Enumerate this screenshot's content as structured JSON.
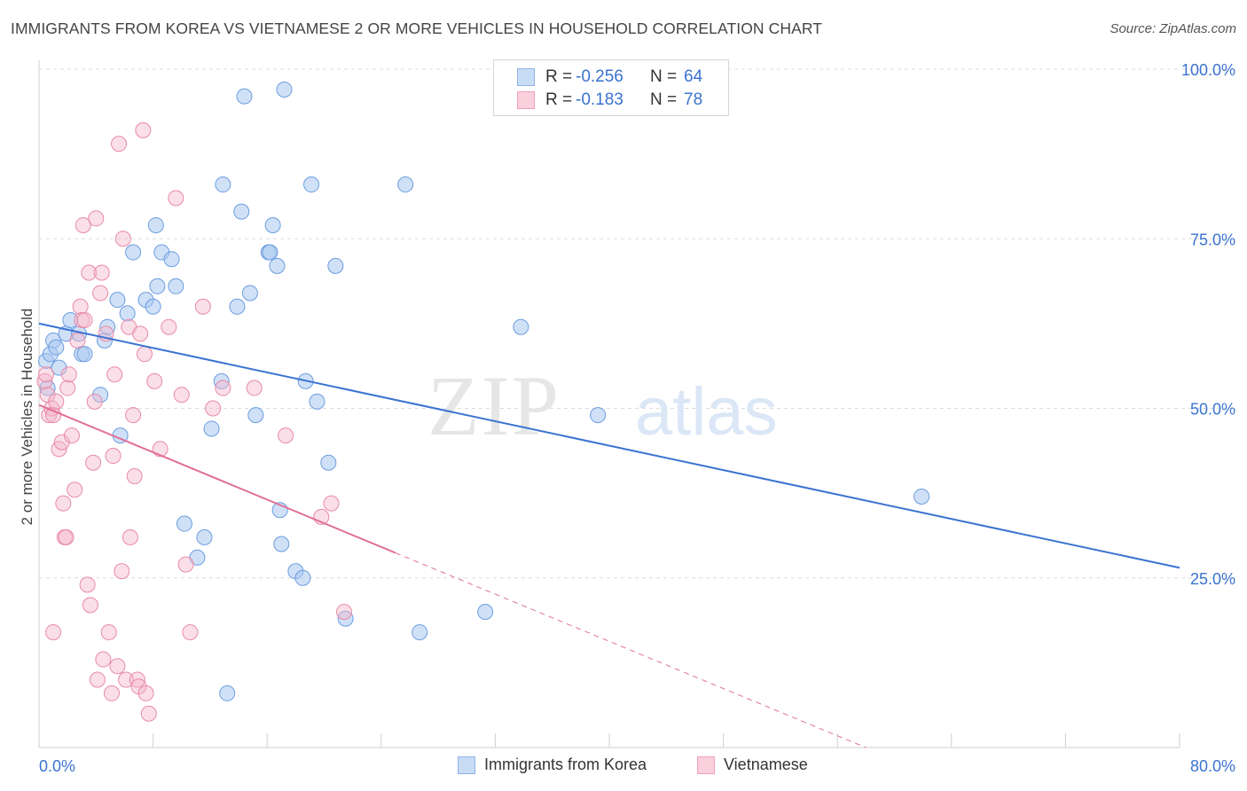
{
  "title": "IMMIGRANTS FROM KOREA VS VIETNAMESE 2 OR MORE VEHICLES IN HOUSEHOLD CORRELATION CHART",
  "source": "Source: ZipAtlas.com",
  "watermark": {
    "part1": "ZIP",
    "part2": "atlas"
  },
  "legend": [
    {
      "r_label": "R =",
      "r_value": "-0.256",
      "n_label": "N =",
      "n_value": "64",
      "color": "#a9c8f1"
    },
    {
      "r_label": "R =",
      "r_value": "-0.183",
      "n_label": "N =",
      "n_value": "78",
      "color": "#f5b8cb"
    }
  ],
  "bottom_legend": [
    "Immigrants from Korea",
    "Vietnamese"
  ],
  "colors": {
    "korea_fill": "#a9c8f1",
    "korea_stroke": "#6b9de0",
    "korea_line": "#3a73d1",
    "viet_fill": "#f5b8cb",
    "viet_stroke": "#e98aa8",
    "viet_line": "#e07097",
    "axis_value": "#3a73d1",
    "grid": "#dcdcdc"
  },
  "chart_data": {
    "type": "scatter",
    "title": "IMMIGRANTS FROM KOREA VS VIETNAMESE 2 OR MORE VEHICLES IN HOUSEHOLD CORRELATION CHART",
    "xlabel": "",
    "ylabel": "2 or more Vehicles in Household",
    "xlim": [
      0,
      80
    ],
    "ylim": [
      0,
      100
    ],
    "x_tick_labels": [
      "0.0%",
      "80.0%"
    ],
    "y_tick_labels": [
      "100.0%",
      "75.0%",
      "50.0%",
      "25.0%"
    ],
    "y_ticks": [
      100,
      75,
      50,
      25
    ],
    "grid": true,
    "series": [
      {
        "name": "Immigrants from Korea",
        "r": -0.256,
        "n": 64,
        "trend": {
          "x": [
            0,
            80
          ],
          "y": [
            62.5,
            26.5
          ],
          "dashed_to": null
        },
        "points": [
          [
            0.5,
            57
          ],
          [
            0.6,
            53
          ],
          [
            0.8,
            58
          ],
          [
            1.0,
            60
          ],
          [
            1.2,
            59
          ],
          [
            1.4,
            56
          ],
          [
            1.9,
            61
          ],
          [
            2.2,
            63
          ],
          [
            2.8,
            61
          ],
          [
            3.0,
            58
          ],
          [
            3.2,
            58
          ],
          [
            4.3,
            52
          ],
          [
            4.6,
            60
          ],
          [
            4.8,
            62
          ],
          [
            5.5,
            66
          ],
          [
            5.7,
            46
          ],
          [
            6.2,
            64
          ],
          [
            6.6,
            73
          ],
          [
            7.5,
            66
          ],
          [
            8.0,
            65
          ],
          [
            8.2,
            77
          ],
          [
            8.3,
            68
          ],
          [
            8.6,
            73
          ],
          [
            9.3,
            72
          ],
          [
            9.6,
            68
          ],
          [
            10.2,
            33
          ],
          [
            11.1,
            28
          ],
          [
            11.6,
            31
          ],
          [
            12.1,
            47
          ],
          [
            12.8,
            54
          ],
          [
            12.9,
            83
          ],
          [
            13.2,
            8
          ],
          [
            13.9,
            65
          ],
          [
            14.2,
            79
          ],
          [
            14.4,
            96
          ],
          [
            14.8,
            67
          ],
          [
            15.2,
            49
          ],
          [
            16.1,
            73
          ],
          [
            16.2,
            73
          ],
          [
            16.4,
            77
          ],
          [
            16.7,
            71
          ],
          [
            16.9,
            35
          ],
          [
            17.0,
            30
          ],
          [
            17.2,
            97
          ],
          [
            18.0,
            26
          ],
          [
            18.5,
            25
          ],
          [
            18.7,
            54
          ],
          [
            19.1,
            83
          ],
          [
            19.5,
            51
          ],
          [
            20.3,
            42
          ],
          [
            20.8,
            71
          ],
          [
            21.5,
            19
          ],
          [
            25.7,
            83
          ],
          [
            26.7,
            17
          ],
          [
            31.3,
            20
          ],
          [
            33.8,
            62
          ],
          [
            39.2,
            49
          ],
          [
            61.9,
            37
          ]
        ]
      },
      {
        "name": "Vietnamese",
        "r": -0.183,
        "n": 78,
        "trend": {
          "x": [
            0,
            25
          ],
          "y": [
            50.5,
            28.7
          ],
          "dashed_to": [
            58,
            0
          ]
        },
        "points": [
          [
            0.4,
            54
          ],
          [
            0.5,
            55
          ],
          [
            0.6,
            52
          ],
          [
            0.7,
            49
          ],
          [
            0.9,
            50
          ],
          [
            1.0,
            49
          ],
          [
            1.0,
            17
          ],
          [
            1.2,
            51
          ],
          [
            1.4,
            44
          ],
          [
            1.6,
            45
          ],
          [
            1.7,
            36
          ],
          [
            1.8,
            31
          ],
          [
            1.9,
            31
          ],
          [
            2.0,
            53
          ],
          [
            2.1,
            55
          ],
          [
            2.3,
            46
          ],
          [
            2.5,
            38
          ],
          [
            2.7,
            60
          ],
          [
            2.9,
            65
          ],
          [
            3.0,
            63
          ],
          [
            3.1,
            77
          ],
          [
            3.2,
            63
          ],
          [
            3.4,
            24
          ],
          [
            3.5,
            70
          ],
          [
            3.6,
            21
          ],
          [
            3.8,
            42
          ],
          [
            3.9,
            51
          ],
          [
            4.0,
            78
          ],
          [
            4.1,
            10
          ],
          [
            4.3,
            67
          ],
          [
            4.4,
            70
          ],
          [
            4.5,
            13
          ],
          [
            4.7,
            61
          ],
          [
            4.9,
            17
          ],
          [
            5.1,
            8
          ],
          [
            5.2,
            43
          ],
          [
            5.3,
            55
          ],
          [
            5.5,
            12
          ],
          [
            5.6,
            89
          ],
          [
            5.8,
            26
          ],
          [
            5.9,
            75
          ],
          [
            6.1,
            10
          ],
          [
            6.3,
            62
          ],
          [
            6.4,
            31
          ],
          [
            6.6,
            49
          ],
          [
            6.7,
            40
          ],
          [
            6.9,
            10
          ],
          [
            7.0,
            9
          ],
          [
            7.1,
            61
          ],
          [
            7.3,
            91
          ],
          [
            7.4,
            58
          ],
          [
            7.5,
            8
          ],
          [
            7.7,
            5
          ],
          [
            8.1,
            54
          ],
          [
            8.5,
            44
          ],
          [
            9.1,
            62
          ],
          [
            9.6,
            81
          ],
          [
            10.0,
            52
          ],
          [
            10.3,
            27
          ],
          [
            10.6,
            17
          ],
          [
            11.5,
            65
          ],
          [
            12.2,
            50
          ],
          [
            12.9,
            53
          ],
          [
            15.1,
            53
          ],
          [
            17.3,
            46
          ],
          [
            19.8,
            34
          ],
          [
            20.5,
            36
          ],
          [
            21.4,
            20
          ]
        ]
      }
    ]
  }
}
